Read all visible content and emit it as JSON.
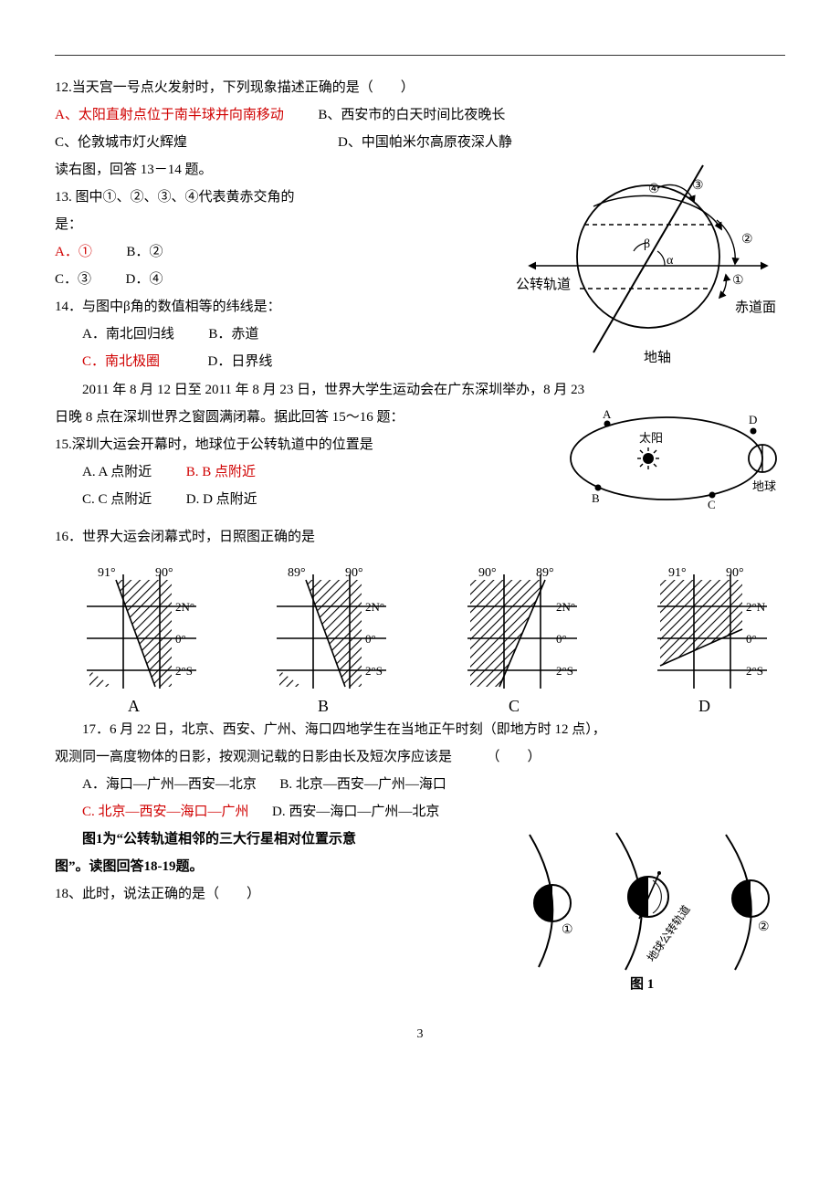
{
  "q12": {
    "stem": "12.当天宫一号点火发射时，下列现象描述正确的是（　　）",
    "a": "A、太阳直射点位于南半球并向南移动",
    "b": "B、西安市的白天时间比夜晚长",
    "c": "C、伦敦城市灯火辉煌",
    "d": "D、中国帕米尔高原夜深人静"
  },
  "pre13": "读右图，回答 13－14 题。",
  "q13": {
    "stem_a": "13. 图中①、②、③、④代表黄赤交角的",
    "stem_b": "是：",
    "a": "A．①",
    "b": "B．②",
    "c": "C．③",
    "d": "D．④"
  },
  "q14": {
    "stem": "14．与图中β角的数值相等的纬线是：",
    "a": "A．南北回归线",
    "b": "B．赤道",
    "c": "C．南北极圈",
    "d": "D．日界线"
  },
  "fig1314": {
    "labels": {
      "orbit": "公转轨道",
      "equator": "赤道面",
      "axis": "地轴",
      "alpha": "α",
      "beta": "β",
      "n1": "①",
      "n2": "②",
      "n3": "③",
      "n4": "④"
    },
    "stroke": "#000000",
    "dash": "4 3"
  },
  "pre15_a": "　　2011 年 8 月 12 日至 2011 年 8 月 23 日，世界大学生运动会在广东深圳举办，8 月 23",
  "pre15_b": "日晚 8 点在深圳世界之窗圆满闭幕。据此回答 15～16 题：",
  "q15": {
    "stem": "15.深圳大运会开幕时，地球位于公转轨道中的位置是",
    "a": "A. A 点附近",
    "b": "B. B 点附近",
    "c": "C. C 点附近",
    "d": "D. D 点附近"
  },
  "fig15": {
    "labels": {
      "sun": "太阳",
      "earth": "地球",
      "A": "A",
      "B": "B",
      "C": "C",
      "D": "D"
    },
    "stroke": "#000000"
  },
  "q16": {
    "stem": "16．世界大运会闭幕式时，日照图正确的是",
    "grid_stroke": "#000000",
    "panels": [
      {
        "label": "A",
        "top_left": "91°",
        "top_right": "90°",
        "lats": [
          "2N°",
          "0°",
          "2°S"
        ],
        "slant_from": "bl"
      },
      {
        "label": "B",
        "top_left": "89°",
        "top_right": "90°",
        "lats": [
          "2N°",
          "0°",
          "2°S"
        ],
        "slant_from": "bl"
      },
      {
        "label": "C",
        "top_left": "90°",
        "top_right": "89°",
        "lats": [
          "2N°",
          "0°",
          "2°S"
        ],
        "slant_from": "tl"
      },
      {
        "label": "D",
        "top_left": "91°",
        "top_right": "90°",
        "lats": [
          "2°N",
          "0°",
          "2°S"
        ],
        "slant_from": "tr"
      }
    ]
  },
  "q17": {
    "stem_a": "　　17．6 月 22 日，北京、西安、广州、海口四地学生在当地正午时刻（即地方时 12 点），",
    "stem_b": "观测同一高度物体的日影，按观测记载的日影由长及短次序应该是　　　（　　）",
    "a": "A．海口—广州—西安—北京",
    "b": "B. 北京—西安—广州—海口",
    "c": "C. 北京—西安—海口—广州",
    "d": "D. 西安—海口—广州—北京"
  },
  "pre18_a": "　　图1为“公转轨道相邻的三大行星相对位置示意",
  "pre18_b": "图”。读图回答18-19题。",
  "q18": {
    "stem": "18、此时，说法正确的是（　　）"
  },
  "fig18": {
    "labels": {
      "n1": "①",
      "n2": "②",
      "orbit": "地球公转轨道",
      "caption": "图 1"
    },
    "stroke": "#000000"
  },
  "page_number": "3"
}
